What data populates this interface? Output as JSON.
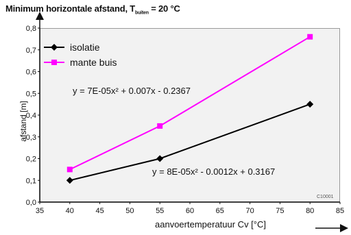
{
  "title_main": "Minimum horizontale afstand, T",
  "title_sub": "buiten",
  "title_end": " = 20 °C",
  "chart_data": {
    "type": "line",
    "xlabel": "aanvoertemperatuur Cv [°C]",
    "ylabel": "afstand [m]",
    "xlim": [
      35,
      85
    ],
    "ylim": [
      0.0,
      0.8
    ],
    "xticks": [
      "35",
      "40",
      "45",
      "50",
      "55",
      "60",
      "65",
      "70",
      "75",
      "80",
      "85"
    ],
    "yticks": [
      "0,0",
      "0,1",
      "0,2",
      "0,3",
      "0,4",
      "0,5",
      "0,6",
      "0,7",
      "0,8"
    ],
    "legend_position": "top-left",
    "series": [
      {
        "name": "isolatie",
        "color": "#000000",
        "marker": "diamond",
        "x": [
          40,
          55,
          80
        ],
        "y": [
          0.1,
          0.2,
          0.45
        ]
      },
      {
        "name": "mante buis",
        "color": "#ff00ff",
        "marker": "square",
        "x": [
          40,
          55,
          80
        ],
        "y": [
          0.15,
          0.35,
          0.76
        ]
      }
    ],
    "annotations": [
      "y = 7E-05x² + 0.007x - 0.2367",
      "y = 8E-05x² - 0.0012x + 0.3167"
    ],
    "figure_code": "C10001"
  }
}
